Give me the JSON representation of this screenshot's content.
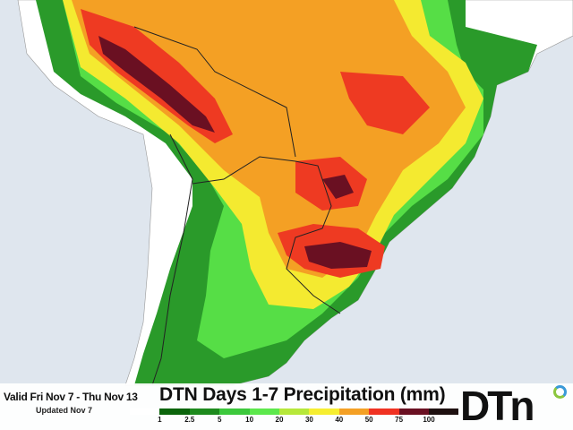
{
  "header": {
    "valid_text": "Valid Fri Nov 7 - Thu Nov 13",
    "updated_text": "Updated Nov 7",
    "title": "DTN Days 1-7 Precipitation (mm)"
  },
  "logo": {
    "text": "DTN"
  },
  "legend": {
    "colors": [
      "#ffffff",
      "#0b640b",
      "#1d8a1d",
      "#3cc83c",
      "#5ce84c",
      "#b6e83a",
      "#f6ee30",
      "#f4a024",
      "#f03222",
      "#6a1022",
      "#1e1010"
    ],
    "labels": [
      "1",
      "2.5",
      "5",
      "10",
      "20",
      "30",
      "40",
      "50",
      "75",
      "100"
    ]
  },
  "colors": {
    "ocean": "#dfe6ee",
    "land": "#ffffff",
    "borders": "#888888"
  }
}
